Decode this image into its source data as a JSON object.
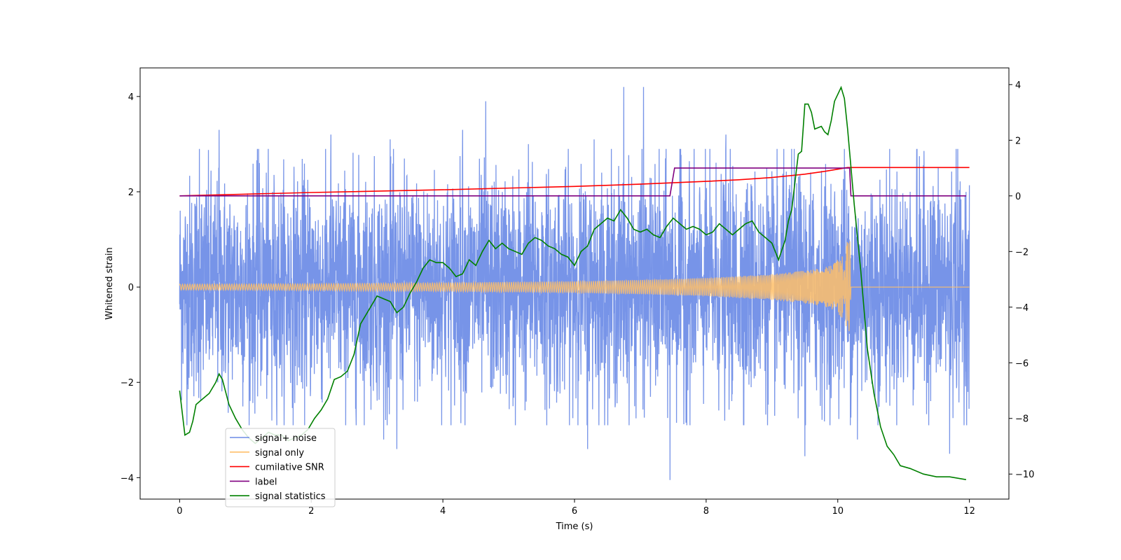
{
  "chart_data": {
    "type": "line",
    "title": "",
    "xlabel": "Time (s)",
    "ylabel": "Whitened strain",
    "ylabel_right": "",
    "xlim": [
      -0.6,
      12.6
    ],
    "ylim": [
      -4.45,
      4.6
    ],
    "ylim_right": [
      -10.9,
      4.6
    ],
    "xticks": [
      0,
      2,
      4,
      6,
      8,
      10,
      12
    ],
    "xtick_labels": [
      "0",
      "2",
      "4",
      "6",
      "8",
      "10",
      "12"
    ],
    "yticks": [
      -4,
      -2,
      0,
      2,
      4
    ],
    "ytick_labels": [
      "−4",
      "−2",
      "0",
      "2",
      "4"
    ],
    "yticks_right": [
      -10,
      -8,
      -6,
      -4,
      -2,
      0,
      2,
      4
    ],
    "ytick_labels_right": [
      "−10",
      "−8",
      "−6",
      "−4",
      "−2",
      "0",
      "2",
      "4"
    ],
    "grid": false,
    "legend_position": "lower-left",
    "series": [
      {
        "name": "signal+ noise",
        "axis": "left",
        "color": "#6b8be6",
        "kind": "dense noise",
        "x_range": [
          0,
          12
        ],
        "typical_amplitude": 1.6,
        "peak_points": [
          [
            0.3,
            2.9
          ],
          [
            0.6,
            3.3
          ],
          [
            1.2,
            2.9
          ],
          [
            2.3,
            3.2
          ],
          [
            3.2,
            3.1
          ],
          [
            4.3,
            3.3
          ],
          [
            4.65,
            3.9
          ],
          [
            5.3,
            3.0
          ],
          [
            6.3,
            3.1
          ],
          [
            6.75,
            4.2
          ],
          [
            7.05,
            4.2
          ],
          [
            7.6,
            2.9
          ],
          [
            8.3,
            3.2
          ],
          [
            9.3,
            2.9
          ],
          [
            10.1,
            2.9
          ],
          [
            11.2,
            2.9
          ],
          [
            11.8,
            2.9
          ],
          [
            1.4,
            -2.8
          ],
          [
            3.1,
            -3.2
          ],
          [
            3.3,
            -3.4
          ],
          [
            5.1,
            -2.9
          ],
          [
            6.2,
            -3.4
          ],
          [
            7.45,
            -4.05
          ],
          [
            9.5,
            -3.55
          ],
          [
            10.3,
            -3.2
          ],
          [
            11.7,
            -3.5
          ]
        ]
      },
      {
        "name": "signal only",
        "axis": "left",
        "color": "#ffbf69",
        "kind": "chirp",
        "chirp_points": [
          [
            0,
            0.06
          ],
          [
            2,
            0.07
          ],
          [
            4,
            0.09
          ],
          [
            6,
            0.12
          ],
          [
            7,
            0.15
          ],
          [
            8,
            0.19
          ],
          [
            9,
            0.27
          ],
          [
            9.6,
            0.36
          ],
          [
            9.9,
            0.45
          ],
          [
            10.1,
            0.7
          ],
          [
            10.18,
            1.2
          ],
          [
            10.2,
            0.0
          ],
          [
            12,
            0.0
          ]
        ]
      },
      {
        "name": "cumilative SNR",
        "axis": "right",
        "color": "#ff0000",
        "kind": "line",
        "x": [
          0,
          2,
          4,
          6,
          7,
          8,
          8.5,
          9,
          9.5,
          9.8,
          10.0,
          10.1,
          10.15,
          10.2,
          12
        ],
        "y": [
          0.0,
          0.12,
          0.22,
          0.34,
          0.42,
          0.52,
          0.58,
          0.66,
          0.78,
          0.88,
          0.96,
          1.0,
          1.02,
          1.02,
          1.02
        ]
      },
      {
        "name": "label",
        "axis": "right",
        "color": "#800080",
        "kind": "line",
        "x": [
          0,
          7.45,
          7.52,
          10.18,
          10.2,
          11.95
        ],
        "y": [
          0,
          0,
          1,
          1,
          0,
          0
        ]
      },
      {
        "name": "signal statistics",
        "axis": "right",
        "color": "#008000",
        "kind": "line",
        "x": [
          0,
          0.08,
          0.15,
          0.2,
          0.25,
          0.3,
          0.35,
          0.45,
          0.55,
          0.6,
          0.65,
          0.75,
          0.85,
          0.95,
          1.05,
          1.15,
          1.25,
          1.35,
          1.45,
          1.55,
          1.65,
          1.75,
          1.85,
          1.95,
          2.05,
          2.15,
          2.25,
          2.35,
          2.45,
          2.55,
          2.65,
          2.75,
          2.8,
          2.9,
          3.0,
          3.1,
          3.2,
          3.3,
          3.4,
          3.5,
          3.6,
          3.7,
          3.8,
          3.9,
          4.0,
          4.1,
          4.2,
          4.3,
          4.4,
          4.5,
          4.6,
          4.7,
          4.8,
          4.9,
          5.0,
          5.1,
          5.2,
          5.3,
          5.4,
          5.5,
          5.6,
          5.7,
          5.8,
          5.9,
          6.0,
          6.1,
          6.2,
          6.3,
          6.4,
          6.5,
          6.6,
          6.7,
          6.8,
          6.9,
          7.0,
          7.1,
          7.2,
          7.3,
          7.4,
          7.5,
          7.6,
          7.7,
          7.8,
          7.9,
          8.0,
          8.1,
          8.2,
          8.3,
          8.4,
          8.5,
          8.6,
          8.7,
          8.8,
          8.9,
          9.0,
          9.1,
          9.2,
          9.25,
          9.3,
          9.35,
          9.4,
          9.45,
          9.5,
          9.55,
          9.6,
          9.65,
          9.75,
          9.8,
          9.85,
          9.9,
          9.95,
          10.05,
          10.1,
          10.15,
          10.25,
          10.35,
          10.45,
          10.55,
          10.65,
          10.75,
          10.85,
          10.95,
          11.1,
          11.3,
          11.5,
          11.7,
          11.95
        ],
        "y": [
          -7.0,
          -8.6,
          -8.5,
          -8.1,
          -7.5,
          -7.4,
          -7.3,
          -7.1,
          -6.7,
          -6.4,
          -6.6,
          -7.5,
          -8.0,
          -8.4,
          -8.7,
          -8.9,
          -8.7,
          -8.5,
          -8.6,
          -8.6,
          -8.8,
          -8.7,
          -8.6,
          -8.4,
          -8.0,
          -7.7,
          -7.3,
          -6.6,
          -6.5,
          -6.3,
          -5.7,
          -4.6,
          -4.4,
          -4.0,
          -3.6,
          -3.7,
          -3.8,
          -4.2,
          -4.0,
          -3.5,
          -3.1,
          -2.6,
          -2.3,
          -2.4,
          -2.4,
          -2.6,
          -2.9,
          -2.8,
          -2.3,
          -2.5,
          -2.0,
          -1.6,
          -1.9,
          -1.7,
          -1.9,
          -2.0,
          -2.1,
          -1.7,
          -1.5,
          -1.6,
          -1.8,
          -1.9,
          -2.1,
          -2.2,
          -2.5,
          -2.0,
          -1.8,
          -1.2,
          -1.0,
          -0.8,
          -0.9,
          -0.5,
          -0.8,
          -1.2,
          -1.3,
          -1.2,
          -1.4,
          -1.5,
          -1.1,
          -0.8,
          -1.0,
          -1.2,
          -1.1,
          -1.2,
          -1.4,
          -1.3,
          -1.0,
          -1.2,
          -1.4,
          -1.2,
          -1.0,
          -0.9,
          -1.3,
          -1.5,
          -1.7,
          -2.3,
          -1.6,
          -0.9,
          -0.5,
          0.5,
          1.5,
          1.6,
          3.3,
          3.3,
          3.0,
          2.4,
          2.5,
          2.3,
          2.2,
          2.7,
          3.4,
          3.9,
          3.5,
          2.4,
          -0.3,
          -2.7,
          -5.5,
          -7.1,
          -8.3,
          -9.0,
          -9.3,
          -9.7,
          -9.8,
          -10.0,
          -10.1,
          -10.1,
          -10.2
        ]
      }
    ]
  }
}
